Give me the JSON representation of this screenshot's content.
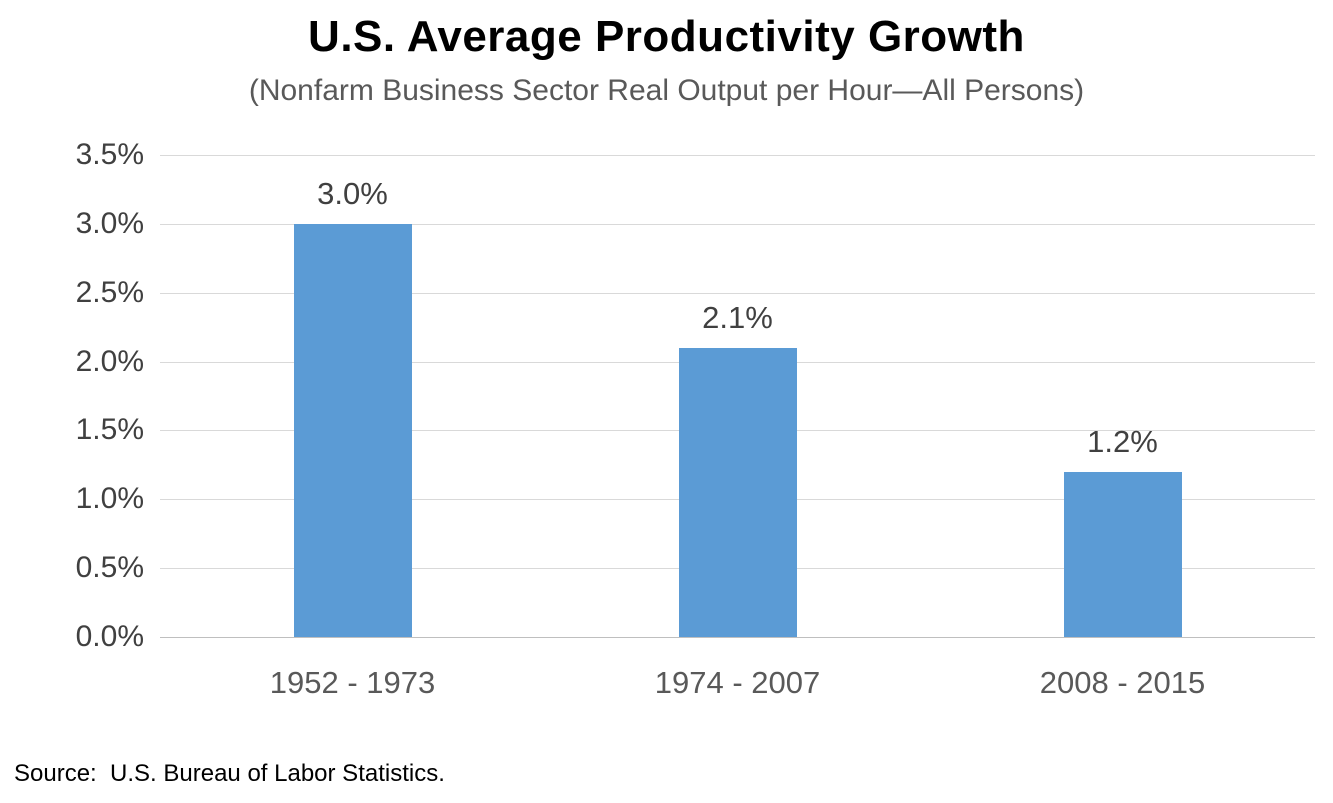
{
  "chart_data": {
    "type": "bar",
    "title": "U.S. Average Productivity Growth",
    "subtitle": "(Nonfarm Business Sector Real Output per Hour—All Persons)",
    "categories": [
      "1952 - 1973",
      "1974 - 2007",
      "2008 - 2015"
    ],
    "values": [
      3.0,
      2.1,
      1.2
    ],
    "data_labels": [
      "3.0%",
      "2.1%",
      "1.2%"
    ],
    "xlabel": "",
    "ylabel": "",
    "ylim": [
      0,
      3.5
    ],
    "ytick_step": 0.5,
    "ytick_labels": [
      "0.0%",
      "0.5%",
      "1.0%",
      "1.5%",
      "2.0%",
      "2.5%",
      "3.0%",
      "3.5%"
    ],
    "grid": "horizontal",
    "legend": "none",
    "bar_color": "#5b9bd5",
    "source": "Source:  U.S. Bureau of Labor Statistics."
  }
}
